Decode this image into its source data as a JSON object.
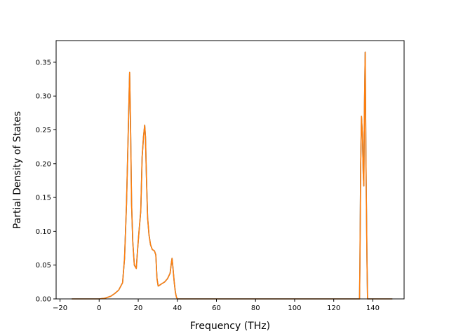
{
  "chart_data": {
    "type": "line",
    "title": "",
    "xlabel": "Frequency (THz)",
    "ylabel": "Partial Density of States",
    "xlim": [
      -22,
      156
    ],
    "ylim": [
      0,
      0.382
    ],
    "xticks": [
      -20,
      0,
      20,
      40,
      60,
      80,
      100,
      120,
      140
    ],
    "xtick_labels": [
      "−20",
      "0",
      "20",
      "40",
      "60",
      "80",
      "100",
      "120",
      "140"
    ],
    "yticks": [
      0.0,
      0.05,
      0.1,
      0.15,
      0.2,
      0.25,
      0.3,
      0.35
    ],
    "ytick_labels": [
      "0.00",
      "0.05",
      "0.10",
      "0.15",
      "0.20",
      "0.25",
      "0.30",
      "0.35"
    ],
    "grid": false,
    "legend": "none",
    "series": [
      {
        "color": "#1f77b4",
        "x": [
          -14,
          0,
          3,
          6,
          8,
          10,
          12,
          13,
          14,
          15,
          15.6,
          16.1,
          16.6,
          17.2,
          18,
          19,
          19.6,
          20.4,
          21.3,
          22,
          22.7,
          23.3,
          23.7,
          24.2,
          24.8,
          25.5,
          26.3,
          27.2,
          28.3,
          29,
          29.6,
          30.2,
          30.8,
          31.8,
          33.5,
          35,
          36.3,
          36.9,
          37.3,
          37.8,
          38.4,
          39,
          39.5,
          40,
          60,
          100,
          133.2,
          133.4,
          133.8,
          134.2,
          134.7,
          135.1,
          135.4,
          135.7,
          136.1,
          136.5,
          137,
          137.3,
          140,
          150
        ],
        "y": [
          0,
          0,
          0.001,
          0.004,
          0.008,
          0.013,
          0.024,
          0.06,
          0.14,
          0.26,
          0.335,
          0.25,
          0.14,
          0.085,
          0.05,
          0.045,
          0.07,
          0.1,
          0.13,
          0.21,
          0.24,
          0.257,
          0.24,
          0.18,
          0.12,
          0.095,
          0.08,
          0.073,
          0.071,
          0.065,
          0.03,
          0.019,
          0.02,
          0.022,
          0.025,
          0.03,
          0.038,
          0.052,
          0.06,
          0.045,
          0.025,
          0.01,
          0.003,
          0,
          0,
          0,
          0,
          0.05,
          0.2,
          0.27,
          0.24,
          0.185,
          0.167,
          0.28,
          0.365,
          0.2,
          0.06,
          0,
          0,
          0
        ]
      },
      {
        "color": "#ff7f0e",
        "x": [
          -14,
          0,
          3,
          6,
          8,
          10,
          12,
          13,
          14,
          15,
          15.6,
          16.1,
          16.6,
          17.2,
          18,
          19,
          19.6,
          20.4,
          21.3,
          22,
          22.7,
          23.3,
          23.7,
          24.2,
          24.8,
          25.5,
          26.3,
          27.2,
          28.3,
          29,
          29.6,
          30.2,
          30.8,
          31.8,
          33.5,
          35,
          36.3,
          36.9,
          37.3,
          37.8,
          38.4,
          39,
          39.5,
          40,
          60,
          100,
          133.2,
          133.4,
          133.8,
          134.2,
          134.7,
          135.1,
          135.4,
          135.7,
          136.1,
          136.5,
          137,
          137.3,
          140,
          150
        ],
        "y": [
          0,
          0,
          0.001,
          0.004,
          0.008,
          0.013,
          0.024,
          0.06,
          0.14,
          0.26,
          0.335,
          0.25,
          0.14,
          0.085,
          0.05,
          0.045,
          0.07,
          0.1,
          0.13,
          0.21,
          0.24,
          0.257,
          0.24,
          0.18,
          0.12,
          0.095,
          0.08,
          0.073,
          0.071,
          0.065,
          0.03,
          0.019,
          0.02,
          0.022,
          0.025,
          0.03,
          0.038,
          0.052,
          0.06,
          0.045,
          0.025,
          0.01,
          0.003,
          0,
          0,
          0,
          0,
          0.05,
          0.2,
          0.27,
          0.24,
          0.185,
          0.167,
          0.28,
          0.365,
          0.2,
          0.06,
          0,
          0,
          0
        ]
      }
    ]
  }
}
